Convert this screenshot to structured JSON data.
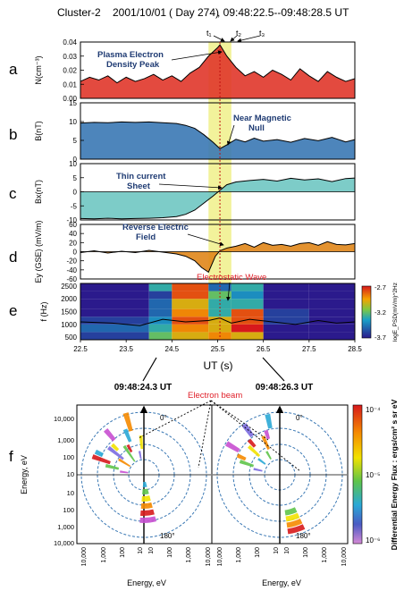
{
  "header": {
    "spacecraft": "Cluster-2",
    "date": "2001/10/01",
    "doy": "( Day 274)",
    "trange": ", 09:48:22.5--09:48:28.5   UT"
  },
  "time_markers": [
    "t₁",
    "t₂",
    "t₃"
  ],
  "panel_letters": [
    "a",
    "b",
    "c",
    "d",
    "e",
    "f"
  ],
  "annotations": {
    "density_peak": [
      "Plasma Electron",
      "Density Peak"
    ],
    "null": [
      "Near Magnetic",
      "Null"
    ],
    "sheet": [
      "Thin current",
      "Sheet"
    ],
    "efield": [
      "Reverse Electric",
      "Field"
    ],
    "wave": "Electrostatic Wave",
    "beam": "Electron beam"
  },
  "colors": {
    "density": "#e0362a",
    "bfield": "#3a78b4",
    "bx": "#6fc6c2",
    "ey": "#e0861a",
    "highlight": "#f0f08a",
    "annotation": "#1f3b73",
    "red_label": "#e0202a"
  },
  "chart_data": [
    {
      "type": "area",
      "panel": "a",
      "ylabel": "N(cm⁻³)",
      "ylim": [
        0,
        0.04
      ],
      "yticks": [
        "0.04",
        "0.03",
        "0.02",
        "0.01",
        "0.00"
      ],
      "ytick_values": [
        0.04,
        0.03,
        0.02,
        0.01,
        0.0
      ],
      "xlim": [
        22.5,
        28.5
      ],
      "x": [
        22.5,
        22.7,
        22.9,
        23.1,
        23.3,
        23.5,
        23.7,
        23.9,
        24.1,
        24.3,
        24.5,
        24.7,
        24.9,
        25.1,
        25.3,
        25.5,
        25.55,
        25.7,
        25.9,
        26.1,
        26.3,
        26.5,
        26.7,
        26.9,
        27.1,
        27.3,
        27.5,
        27.7,
        27.9,
        28.1,
        28.3,
        28.5
      ],
      "y": [
        0.012,
        0.015,
        0.013,
        0.016,
        0.011,
        0.015,
        0.012,
        0.014,
        0.017,
        0.013,
        0.016,
        0.012,
        0.018,
        0.022,
        0.03,
        0.036,
        0.038,
        0.03,
        0.022,
        0.016,
        0.019,
        0.015,
        0.02,
        0.017,
        0.013,
        0.021,
        0.016,
        0.012,
        0.019,
        0.015,
        0.012,
        0.014
      ]
    },
    {
      "type": "area",
      "panel": "b",
      "ylabel": "B(nT)",
      "ylim": [
        0,
        15
      ],
      "yticks": [
        "15",
        "10",
        "5",
        "0"
      ],
      "ytick_values": [
        15,
        10,
        5,
        0
      ],
      "xlim": [
        22.5,
        28.5
      ],
      "x": [
        22.5,
        22.8,
        23.1,
        23.4,
        23.7,
        24.0,
        24.3,
        24.6,
        24.8,
        25.0,
        25.2,
        25.4,
        25.55,
        25.7,
        25.9,
        26.1,
        26.3,
        26.5,
        26.8,
        27.1,
        27.4,
        27.7,
        28.0,
        28.3,
        28.5
      ],
      "y": [
        9.6,
        9.8,
        9.7,
        9.9,
        9.8,
        9.9,
        9.7,
        9.5,
        9.0,
        8.2,
        6.5,
        4.5,
        2.8,
        3.8,
        5.3,
        4.6,
        5.6,
        4.8,
        5.2,
        4.5,
        5.5,
        4.9,
        5.8,
        4.6,
        5.2
      ]
    },
    {
      "type": "area",
      "panel": "c",
      "ylabel": "Bx(nT)",
      "ylim": [
        -10,
        10
      ],
      "yticks": [
        "10",
        "5",
        "0",
        "-5",
        "-10"
      ],
      "ytick_values": [
        10,
        5,
        0,
        -5,
        -10
      ],
      "xlim": [
        22.5,
        28.5
      ],
      "x": [
        22.5,
        22.8,
        23.1,
        23.4,
        23.7,
        24.0,
        24.3,
        24.6,
        24.8,
        25.0,
        25.2,
        25.4,
        25.55,
        25.7,
        25.9,
        26.2,
        26.5,
        26.8,
        27.1,
        27.4,
        27.7,
        28.0,
        28.3,
        28.5
      ],
      "y": [
        -9.5,
        -9.6,
        -9.4,
        -9.6,
        -9.5,
        -9.4,
        -9.2,
        -8.8,
        -8.0,
        -6.5,
        -4.0,
        -1.5,
        0.5,
        2.5,
        3.5,
        4.0,
        4.4,
        3.8,
        4.8,
        4.2,
        4.6,
        3.6,
        4.7,
        4.9
      ]
    },
    {
      "type": "area",
      "panel": "d",
      "ylabel": "Ey (GSE) (mV/m)",
      "ylim": [
        -60,
        60
      ],
      "yticks": [
        "60",
        "40",
        "20",
        "0",
        "-20",
        "-40",
        "-60"
      ],
      "ytick_values": [
        60,
        40,
        20,
        0,
        -20,
        -40,
        -60
      ],
      "xlim": [
        22.5,
        28.5
      ],
      "x": [
        22.5,
        22.8,
        23.1,
        23.4,
        23.7,
        24.0,
        24.3,
        24.6,
        24.8,
        25.0,
        25.15,
        25.3,
        25.45,
        25.55,
        25.7,
        25.9,
        26.1,
        26.3,
        26.5,
        26.7,
        26.9,
        27.1,
        27.3,
        27.5,
        27.7,
        27.9,
        28.1,
        28.3,
        28.5
      ],
      "y": [
        -2,
        2,
        -3,
        1,
        -2,
        3,
        -1,
        -5,
        -10,
        -20,
        -35,
        -45,
        -10,
        2,
        8,
        12,
        18,
        10,
        20,
        14,
        16,
        12,
        18,
        20,
        14,
        22,
        16,
        15,
        18
      ]
    },
    {
      "type": "heatmap",
      "panel": "e",
      "ylabel": "f (Hz)",
      "yticks": [
        "2500",
        "2000",
        "1500",
        "1000",
        "500"
      ],
      "ytick_values": [
        2500,
        2000,
        1500,
        1000,
        500
      ],
      "xlabel": "UT (s)",
      "xticks": [
        "22.5",
        "23.5",
        "24.5",
        "25.5",
        "26.5",
        "27.5",
        "28.5"
      ],
      "xtick_values": [
        22.5,
        23.5,
        24.5,
        25.5,
        26.5,
        27.5,
        28.5
      ],
      "colorbar_label": "logE_PSD(mV/m)^2Hz",
      "colorbar_ticks": [
        "-2.7",
        "-3.2",
        "-3.7"
      ],
      "colorbar_values": [
        -2.7,
        -3.2,
        -3.7
      ],
      "x_edges": [
        22.5,
        24.0,
        24.5,
        25.3,
        25.8,
        26.5,
        27.5,
        28.5
      ],
      "y_edges": [
        400,
        700,
        1000,
        1300,
        1600,
        2000,
        2300,
        2600
      ],
      "z": [
        [
          -3.6,
          -3.2,
          -3.0,
          -2.9,
          -3.0,
          -3.7,
          -3.7
        ],
        [
          -3.5,
          -3.3,
          -2.9,
          -3.0,
          -2.7,
          -3.7,
          -3.7
        ],
        [
          -3.6,
          -3.4,
          -2.8,
          -3.0,
          -2.8,
          -3.6,
          -3.7
        ],
        [
          -3.7,
          -3.5,
          -2.9,
          -3.3,
          -2.8,
          -3.6,
          -3.7
        ],
        [
          -3.7,
          -3.5,
          -3.0,
          -3.3,
          -3.3,
          -3.7,
          -3.7
        ],
        [
          -3.7,
          -3.6,
          -2.8,
          -3.2,
          -3.4,
          -3.7,
          -3.7
        ],
        [
          -3.7,
          -3.3,
          -2.8,
          -3.5,
          -3.3,
          -3.7,
          -3.7
        ]
      ]
    },
    {
      "type": "scatter",
      "panel": "f",
      "title_left": "09:48:24.3 UT",
      "title_right": "09:48:26.3 UT",
      "ylabel": "Energy, eV",
      "xlabel": "Energy, eV",
      "yticks": [
        "10,000",
        "1,000",
        "100",
        "10",
        "10",
        "100",
        "1,000",
        "10,000"
      ],
      "xticks_left": [
        "10,000",
        "1,000",
        "100",
        "10"
      ],
      "xticks_right": [
        "10",
        "100",
        "1,000",
        "10,000"
      ],
      "xticks_right_panel": [
        "10,000",
        "1,000",
        "100",
        "10",
        "10",
        "100",
        "1,000",
        "10,000"
      ],
      "angle_labels": [
        "0°",
        "180°"
      ],
      "colorbar_label": "Differential Energy Flux : ergs/cm² s sr eV",
      "colorbar_ticks": [
        "10⁻⁴",
        "10⁻⁵",
        "10⁻⁶"
      ]
    }
  ]
}
